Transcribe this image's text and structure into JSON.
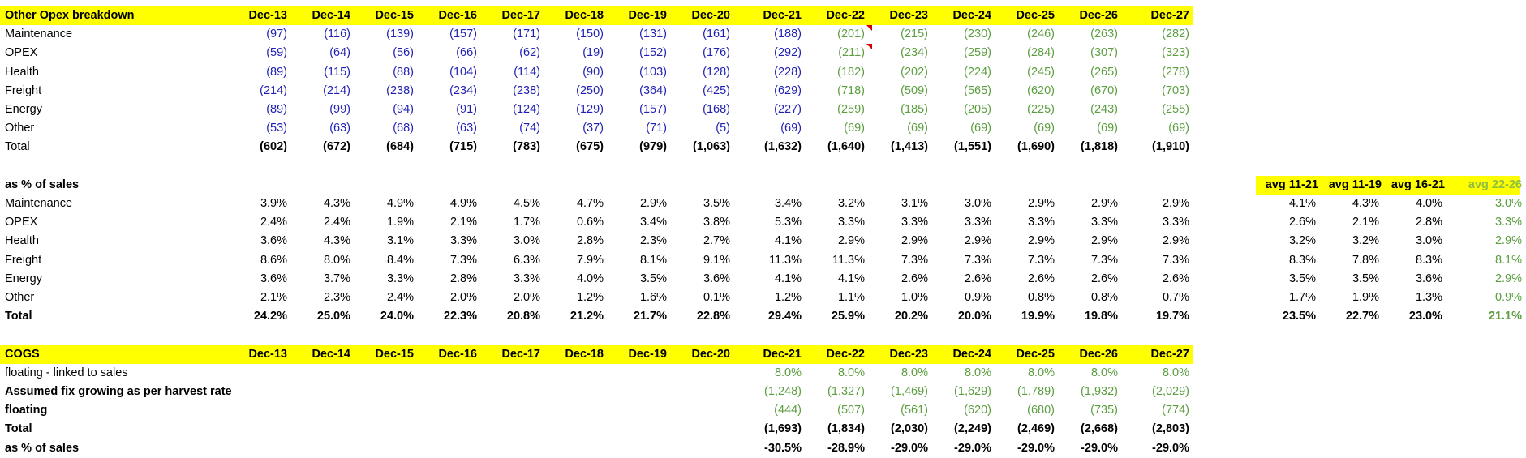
{
  "opex": {
    "title": "Other Opex breakdown",
    "years": [
      "Dec-13",
      "Dec-14",
      "Dec-15",
      "Dec-16",
      "Dec-17",
      "Dec-18",
      "Dec-19",
      "Dec-20",
      "Dec-21",
      "Dec-22",
      "Dec-23",
      "Dec-24",
      "Dec-25",
      "Dec-26",
      "Dec-27"
    ],
    "rows": [
      {
        "label": "Maintenance",
        "values": [
          "(97)",
          "(116)",
          "(139)",
          "(157)",
          "(171)",
          "(150)",
          "(131)",
          "(161)",
          "(188)",
          "(201)",
          "(215)",
          "(230)",
          "(246)",
          "(263)",
          "(282)"
        ]
      },
      {
        "label": "OPEX",
        "values": [
          "(59)",
          "(64)",
          "(56)",
          "(66)",
          "(62)",
          "(19)",
          "(152)",
          "(176)",
          "(292)",
          "(211)",
          "(234)",
          "(259)",
          "(284)",
          "(307)",
          "(323)"
        ]
      },
      {
        "label": "Health",
        "values": [
          "(89)",
          "(115)",
          "(88)",
          "(104)",
          "(114)",
          "(90)",
          "(103)",
          "(128)",
          "(228)",
          "(182)",
          "(202)",
          "(224)",
          "(245)",
          "(265)",
          "(278)"
        ]
      },
      {
        "label": "Freight",
        "values": [
          "(214)",
          "(214)",
          "(238)",
          "(234)",
          "(238)",
          "(250)",
          "(364)",
          "(425)",
          "(629)",
          "(718)",
          "(509)",
          "(565)",
          "(620)",
          "(670)",
          "(703)"
        ]
      },
      {
        "label": "Energy",
        "values": [
          "(89)",
          "(99)",
          "(94)",
          "(91)",
          "(124)",
          "(129)",
          "(157)",
          "(168)",
          "(227)",
          "(259)",
          "(185)",
          "(205)",
          "(225)",
          "(243)",
          "(255)"
        ]
      },
      {
        "label": "Other",
        "values": [
          "(53)",
          "(63)",
          "(68)",
          "(63)",
          "(74)",
          "(37)",
          "(71)",
          "(5)",
          "(69)",
          "(69)",
          "(69)",
          "(69)",
          "(69)",
          "(69)",
          "(69)"
        ]
      }
    ],
    "total": {
      "label": "Total",
      "values": [
        "(602)",
        "(672)",
        "(684)",
        "(715)",
        "(783)",
        "(675)",
        "(979)",
        "(1,063)",
        "(1,632)",
        "(1,640)",
        "(1,413)",
        "(1,551)",
        "(1,690)",
        "(1,818)",
        "(1,910)"
      ]
    }
  },
  "pct": {
    "title": "as % of sales",
    "avg_headers": [
      "avg 11-21",
      "avg 11-19",
      "avg 16-21",
      "avg 22-26"
    ],
    "rows": [
      {
        "label": "Maintenance",
        "values": [
          "3.9%",
          "4.3%",
          "4.9%",
          "4.9%",
          "4.5%",
          "4.7%",
          "2.9%",
          "3.5%",
          "3.4%",
          "3.2%",
          "3.1%",
          "3.0%",
          "2.9%",
          "2.9%",
          "2.9%"
        ],
        "avgs": [
          "4.1%",
          "4.3%",
          "4.0%",
          "3.0%"
        ]
      },
      {
        "label": "OPEX",
        "values": [
          "2.4%",
          "2.4%",
          "1.9%",
          "2.1%",
          "1.7%",
          "0.6%",
          "3.4%",
          "3.8%",
          "5.3%",
          "3.3%",
          "3.3%",
          "3.3%",
          "3.3%",
          "3.3%",
          "3.3%"
        ],
        "avgs": [
          "2.6%",
          "2.1%",
          "2.8%",
          "3.3%"
        ]
      },
      {
        "label": "Health",
        "values": [
          "3.6%",
          "4.3%",
          "3.1%",
          "3.3%",
          "3.0%",
          "2.8%",
          "2.3%",
          "2.7%",
          "4.1%",
          "2.9%",
          "2.9%",
          "2.9%",
          "2.9%",
          "2.9%",
          "2.9%"
        ],
        "avgs": [
          "3.2%",
          "3.2%",
          "3.0%",
          "2.9%"
        ]
      },
      {
        "label": "Freight",
        "values": [
          "8.6%",
          "8.0%",
          "8.4%",
          "7.3%",
          "6.3%",
          "7.9%",
          "8.1%",
          "9.1%",
          "11.3%",
          "11.3%",
          "7.3%",
          "7.3%",
          "7.3%",
          "7.3%",
          "7.3%"
        ],
        "avgs": [
          "8.3%",
          "7.8%",
          "8.3%",
          "8.1%"
        ]
      },
      {
        "label": "Energy",
        "values": [
          "3.6%",
          "3.7%",
          "3.3%",
          "2.8%",
          "3.3%",
          "4.0%",
          "3.5%",
          "3.6%",
          "4.1%",
          "4.1%",
          "2.6%",
          "2.6%",
          "2.6%",
          "2.6%",
          "2.6%"
        ],
        "avgs": [
          "3.5%",
          "3.5%",
          "3.6%",
          "2.9%"
        ]
      },
      {
        "label": "Other",
        "values": [
          "2.1%",
          "2.3%",
          "2.4%",
          "2.0%",
          "2.0%",
          "1.2%",
          "1.6%",
          "0.1%",
          "1.2%",
          "1.1%",
          "1.0%",
          "0.9%",
          "0.8%",
          "0.8%",
          "0.7%"
        ],
        "avgs": [
          "1.7%",
          "1.9%",
          "1.3%",
          "0.9%"
        ]
      }
    ],
    "total": {
      "label": "Total",
      "values": [
        "24.2%",
        "25.0%",
        "24.0%",
        "22.3%",
        "20.8%",
        "21.2%",
        "21.7%",
        "22.8%",
        "29.4%",
        "25.9%",
        "20.2%",
        "20.0%",
        "19.9%",
        "19.8%",
        "19.7%"
      ],
      "avgs": [
        "23.5%",
        "22.7%",
        "23.0%",
        "21.1%"
      ]
    }
  },
  "cogs": {
    "title": "COGS",
    "years": [
      "Dec-13",
      "Dec-14",
      "Dec-15",
      "Dec-16",
      "Dec-17",
      "Dec-18",
      "Dec-19",
      "Dec-20",
      "Dec-21",
      "Dec-22",
      "Dec-23",
      "Dec-24",
      "Dec-25",
      "Dec-26",
      "Dec-27"
    ],
    "rows": [
      {
        "label": "floating - linked to sales",
        "bold": false,
        "values": [
          "8.0%",
          "8.0%",
          "8.0%",
          "8.0%",
          "8.0%",
          "8.0%",
          "8.0%"
        ]
      },
      {
        "label": "Assumed fix growing as per harvest rate",
        "bold": true,
        "values": [
          "(1,248)",
          "(1,327)",
          "(1,469)",
          "(1,629)",
          "(1,789)",
          "(1,932)",
          "(2,029)"
        ]
      },
      {
        "label": "floating",
        "bold": true,
        "values": [
          "(444)",
          "(507)",
          "(561)",
          "(620)",
          "(680)",
          "(735)",
          "(774)"
        ]
      },
      {
        "label": "Total",
        "bold": true,
        "values": [
          "(1,693)",
          "(1,834)",
          "(2,030)",
          "(2,249)",
          "(2,469)",
          "(2,668)",
          "(2,803)"
        ]
      },
      {
        "label": "as % of sales",
        "bold": true,
        "values": [
          "-30.5%",
          "-28.9%",
          "-29.0%",
          "-29.0%",
          "-29.0%",
          "-29.0%",
          "-29.0%"
        ]
      }
    ]
  },
  "colors": {
    "header_fill": "#ffff00",
    "historic": "#1f1fb4",
    "forecast": "#5c9e40",
    "comment": "#d40000"
  }
}
